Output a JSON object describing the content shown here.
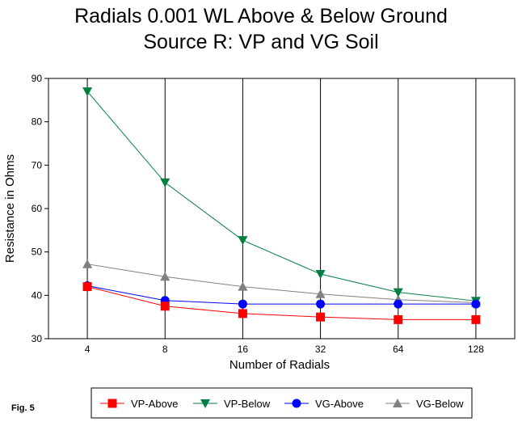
{
  "chart_data": {
    "type": "line",
    "title_lines": [
      "Radials 0.001 WL Above & Below Ground",
      "Source R:  VP and VG Soil"
    ],
    "xlabel": "Number of Radials",
    "ylabel": "Resistance in Ohms",
    "categories": [
      "4",
      "8",
      "16",
      "32",
      "64",
      "128"
    ],
    "ylim": [
      30,
      90
    ],
    "yticks": [
      "30",
      "40",
      "50",
      "60",
      "70",
      "80",
      "90"
    ],
    "grid": "vertical",
    "legend_position": "bottom",
    "series": [
      {
        "name": "VP-Above",
        "color": "#ff0000",
        "marker": "square",
        "values": [
          42.0,
          37.5,
          35.8,
          35.0,
          34.4,
          34.4
        ]
      },
      {
        "name": "VP-Below",
        "color": "#008040",
        "marker": "triangle-down",
        "values": [
          87.0,
          66.0,
          52.7,
          44.9,
          40.7,
          38.7
        ]
      },
      {
        "name": "VG-Above",
        "color": "#0000ff",
        "marker": "circle",
        "values": [
          42.2,
          38.8,
          38.0,
          38.0,
          38.0,
          38.0
        ]
      },
      {
        "name": "VG-Below",
        "color": "#808080",
        "marker": "triangle-up",
        "values": [
          47.2,
          44.3,
          42.0,
          40.3,
          39.0,
          38.3
        ]
      }
    ]
  },
  "fig_label": "Fig. 5"
}
